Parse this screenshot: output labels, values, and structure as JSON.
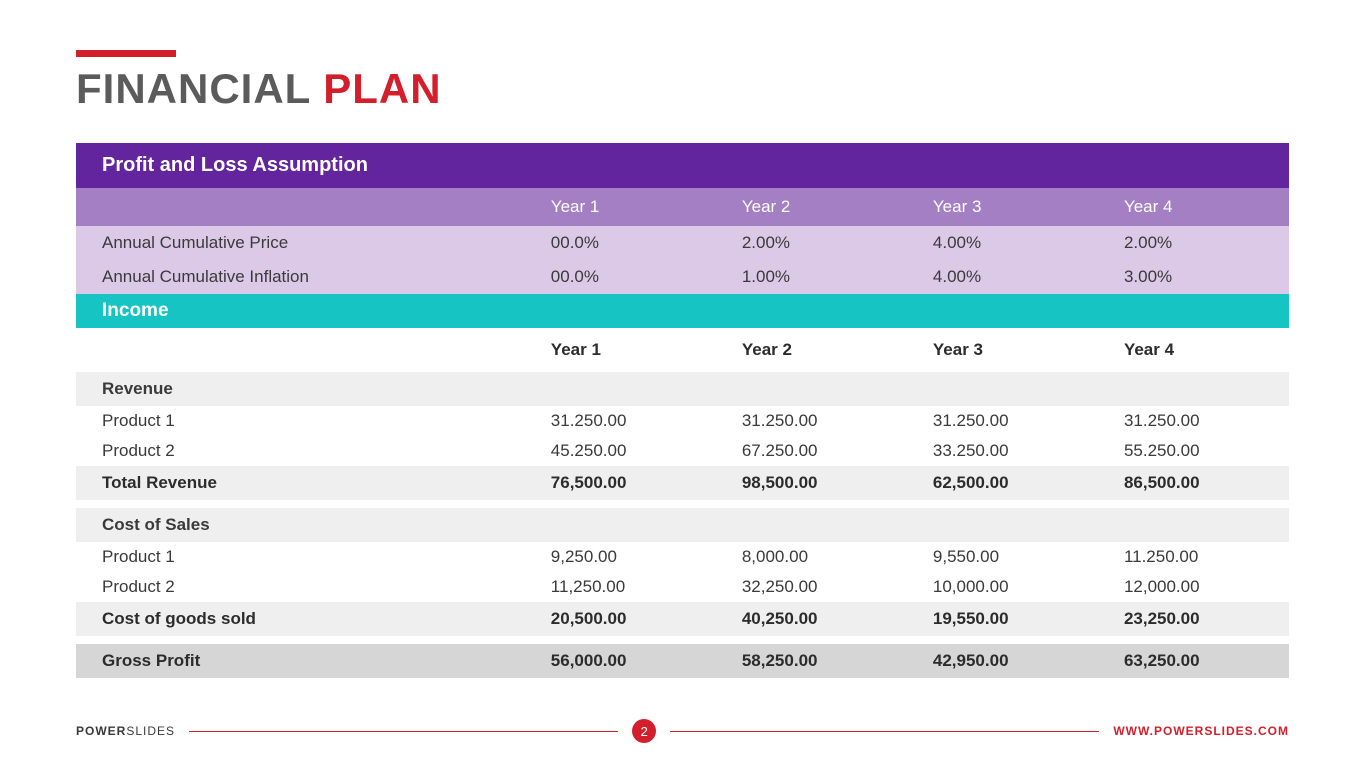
{
  "title": {
    "word1": "FINANCIAL",
    "word2": "PLAN"
  },
  "colors": {
    "accent_red": "#d31f2b",
    "purple_dark": "#62259d",
    "purple_mid": "#a47fc4",
    "purple_light": "#dcc9e8",
    "teal": "#17c4c4",
    "grey_light": "#efefef",
    "grey_mid": "#d6d6d6",
    "text": "#3a3a3a"
  },
  "assumption": {
    "header": "Profit and Loss Assumption",
    "years": [
      "Year 1",
      "Year 2",
      "Year 3",
      "Year 4"
    ],
    "rows": [
      {
        "label": "Annual Cumulative Price",
        "vals": [
          "00.0%",
          "2.00%",
          "4.00%",
          "2.00%"
        ]
      },
      {
        "label": "Annual Cumulative Inflation",
        "vals": [
          "00.0%",
          "1.00%",
          "4.00%",
          "3.00%"
        ]
      }
    ]
  },
  "income": {
    "header": "Income",
    "years": [
      "Year 1",
      "Year 2",
      "Year 3",
      "Year 4"
    ],
    "revenue": {
      "label": "Revenue",
      "rows": [
        {
          "label": "Product 1",
          "vals": [
            "31.250.00",
            "31.250.00",
            "31.250.00",
            "31.250.00"
          ]
        },
        {
          "label": "Product 2",
          "vals": [
            "45.250.00",
            "67.250.00",
            "33.250.00",
            "55.250.00"
          ]
        }
      ],
      "total": {
        "label": "Total Revenue",
        "vals": [
          "76,500.00",
          "98,500.00",
          "62,500.00",
          "86,500.00"
        ]
      }
    },
    "cost": {
      "label": "Cost of Sales",
      "rows": [
        {
          "label": "Product 1",
          "vals": [
            "9,250.00",
            "8,000.00",
            "9,550.00",
            "11.250.00"
          ]
        },
        {
          "label": "Product 2",
          "vals": [
            "11,250.00",
            "32,250.00",
            "10,000.00",
            "12,000.00"
          ]
        }
      ],
      "total": {
        "label": "Cost of goods sold",
        "vals": [
          "20,500.00",
          "40,250.00",
          "19,550.00",
          "23,250.00"
        ]
      }
    },
    "gross": {
      "label": "Gross Profit",
      "vals": [
        "56,000.00",
        "58,250.00",
        "42,950.00",
        "63,250.00"
      ]
    }
  },
  "footer": {
    "brand_bold": "POWER",
    "brand_light": "SLIDES",
    "page": "2",
    "url": "WWW.POWERSLIDES.COM"
  }
}
